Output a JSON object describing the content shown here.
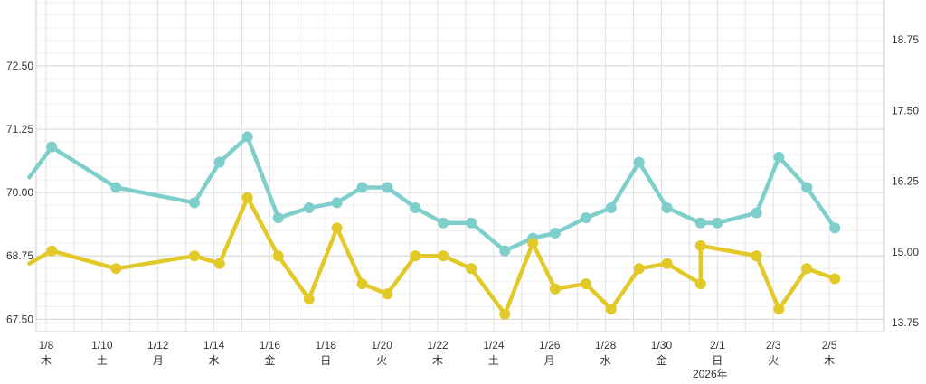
{
  "chart_data": {
    "type": "line",
    "title": "",
    "xlabel": "",
    "ylabel": "",
    "ylim": [
      66.9,
      73.8
    ],
    "y2lim": [
      13.1,
      19.5
    ],
    "y_ticks": [
      "67.50",
      "68.75",
      "70.00",
      "71.25",
      "72.50"
    ],
    "y2_ticks": [
      "13.75",
      "15.00",
      "16.25",
      "17.50",
      "18.75"
    ],
    "grid": true,
    "x_ticks": [
      {
        "d": 8,
        "label": "1/8",
        "wd": "木",
        "color": "#333333"
      },
      {
        "d": 10,
        "label": "1/10",
        "wd": "土",
        "color": "#3b6fd6"
      },
      {
        "d": 12,
        "label": "1/12",
        "wd": "月",
        "color": "#333333"
      },
      {
        "d": 14,
        "label": "1/14",
        "wd": "水",
        "color": "#333333"
      },
      {
        "d": 16,
        "label": "1/16",
        "wd": "金",
        "color": "#333333"
      },
      {
        "d": 18,
        "label": "1/18",
        "wd": "日",
        "color": "#d0302b"
      },
      {
        "d": 20,
        "label": "1/20",
        "wd": "火",
        "color": "#333333"
      },
      {
        "d": 22,
        "label": "1/22",
        "wd": "木",
        "color": "#333333"
      },
      {
        "d": 24,
        "label": "1/24",
        "wd": "土",
        "color": "#3b6fd6"
      },
      {
        "d": 26,
        "label": "1/26",
        "wd": "月",
        "color": "#333333"
      },
      {
        "d": 28,
        "label": "1/28",
        "wd": "水",
        "color": "#333333"
      },
      {
        "d": 30,
        "label": "1/30",
        "wd": "金",
        "color": "#333333"
      },
      {
        "d": 32,
        "label": "2/1",
        "wd": "日",
        "color": "#d0302b"
      },
      {
        "d": 34,
        "label": "2/3",
        "wd": "火",
        "color": "#333333"
      },
      {
        "d": 36,
        "label": "2/5",
        "wd": "木",
        "color": "#333333"
      }
    ],
    "year_label": "2026年",
    "series": [
      {
        "axis": "left",
        "color": "#7ecfcc",
        "points": [
          [
            7.4,
            70.3
          ],
          [
            8.2,
            70.9
          ],
          [
            10.5,
            70.1
          ],
          [
            13.3,
            69.8
          ],
          [
            14.2,
            70.6
          ],
          [
            15.2,
            71.1
          ],
          [
            16.3,
            69.5
          ],
          [
            17.4,
            69.7
          ],
          [
            18.4,
            69.8
          ],
          [
            19.3,
            70.1
          ],
          [
            20.2,
            70.1
          ],
          [
            21.2,
            69.7
          ],
          [
            22.2,
            69.4
          ],
          [
            23.2,
            69.4
          ],
          [
            24.4,
            68.85
          ],
          [
            25.4,
            69.1
          ],
          [
            26.2,
            69.2
          ],
          [
            27.3,
            69.5
          ],
          [
            28.2,
            69.7
          ],
          [
            29.2,
            70.6
          ],
          [
            30.2,
            69.7
          ],
          [
            31.4,
            69.4
          ],
          [
            32.0,
            69.4
          ],
          [
            33.4,
            69.6
          ],
          [
            34.2,
            70.7
          ],
          [
            35.2,
            70.1
          ],
          [
            36.2,
            69.3
          ]
        ]
      },
      {
        "axis": "left",
        "color": "#e2c927",
        "points": [
          [
            7.4,
            68.6
          ],
          [
            8.2,
            68.85
          ],
          [
            10.5,
            68.5
          ],
          [
            13.3,
            68.75
          ],
          [
            14.2,
            68.6
          ],
          [
            15.2,
            69.9
          ],
          [
            16.3,
            68.75
          ],
          [
            17.4,
            67.9
          ],
          [
            18.4,
            69.3
          ],
          [
            19.3,
            68.2
          ],
          [
            20.2,
            68.0
          ],
          [
            21.2,
            68.75
          ],
          [
            22.2,
            68.75
          ],
          [
            23.2,
            68.5
          ],
          [
            24.4,
            67.6
          ],
          [
            25.4,
            69.0
          ],
          [
            26.2,
            68.1
          ],
          [
            27.3,
            68.2
          ],
          [
            28.2,
            67.7
          ],
          [
            29.2,
            68.5
          ],
          [
            30.2,
            68.6
          ],
          [
            31.4,
            68.2
          ],
          [
            31.4,
            68.95
          ],
          [
            33.4,
            68.75
          ],
          [
            34.2,
            67.7
          ],
          [
            35.2,
            68.5
          ],
          [
            36.2,
            68.3
          ]
        ]
      }
    ]
  },
  "colors": {
    "grid": "#e2e2e2",
    "grid_minor": "#efefef",
    "axis_text": "#333333"
  }
}
